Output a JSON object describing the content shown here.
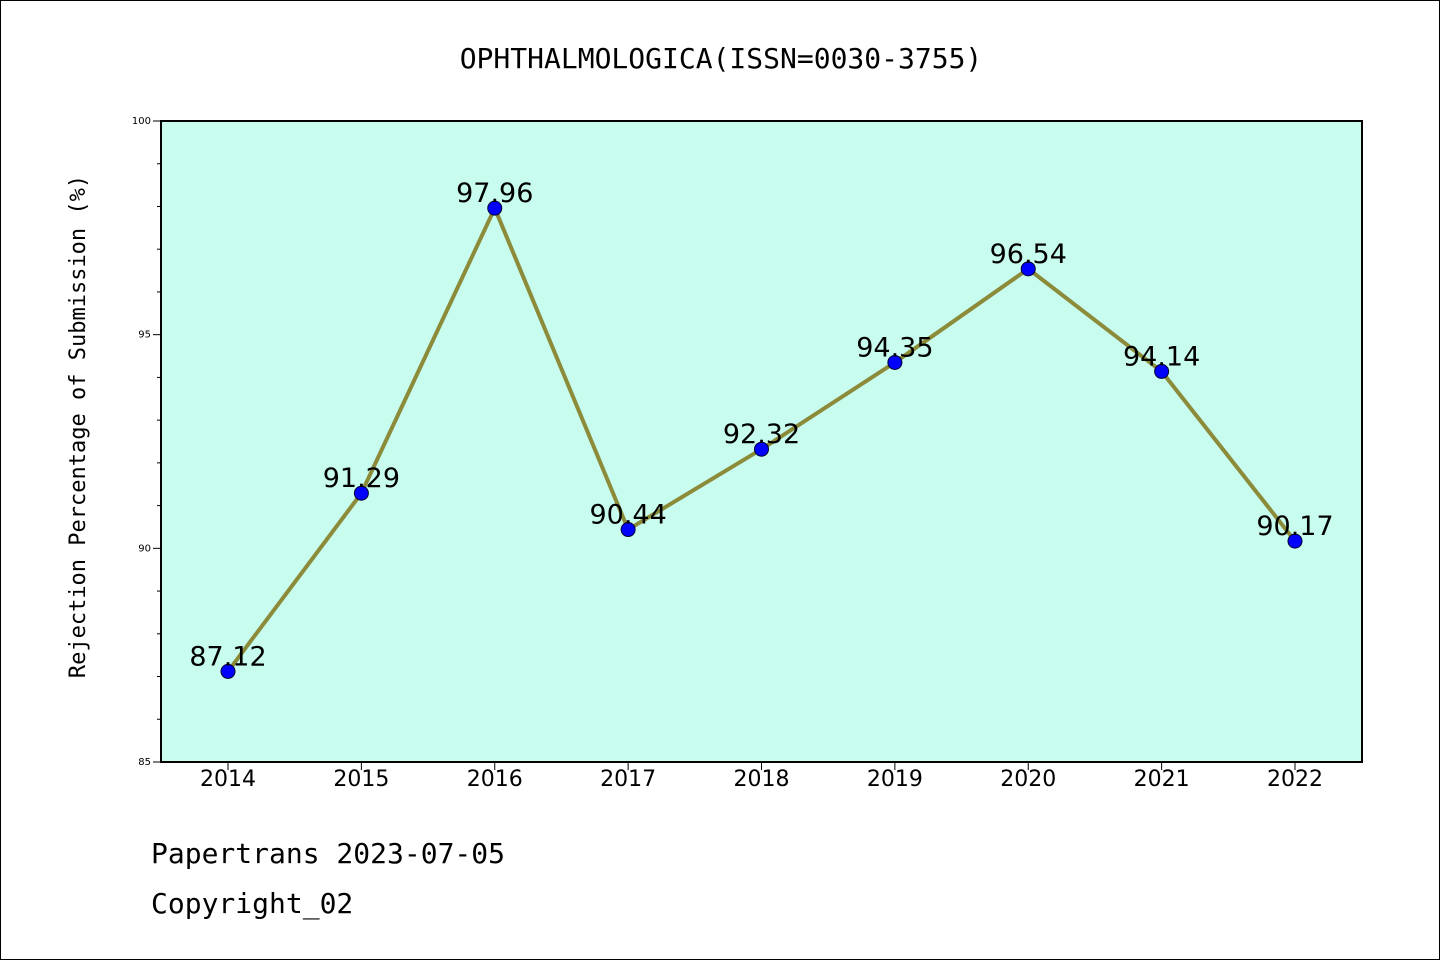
{
  "chart_data": {
    "type": "line",
    "title": "OPHTHALMOLOGICA(ISSN=0030-3755)",
    "xlabel": "",
    "ylabel": "Rejection Percentage of Submission (%)",
    "x": [
      "2014",
      "2015",
      "2016",
      "2017",
      "2018",
      "2019",
      "2020",
      "2021",
      "2022"
    ],
    "values": [
      87.12,
      91.29,
      97.96,
      90.44,
      92.32,
      94.35,
      96.54,
      94.14,
      90.17
    ],
    "data_labels": [
      "87.12",
      "91.29",
      "97.96",
      "90.44",
      "92.32",
      "94.35",
      "96.54",
      "94.14",
      "90.17"
    ],
    "ylim": [
      85,
      100
    ],
    "yticks": [
      "85",
      "90",
      "95",
      "100"
    ],
    "grid": false,
    "colors": {
      "plot_background": "#c8fcee",
      "line": "#8b8b3a",
      "marker": "#0000ff"
    }
  },
  "footer": {
    "line1": "Papertrans 2023-07-05",
    "line2": "Copyright_02"
  }
}
